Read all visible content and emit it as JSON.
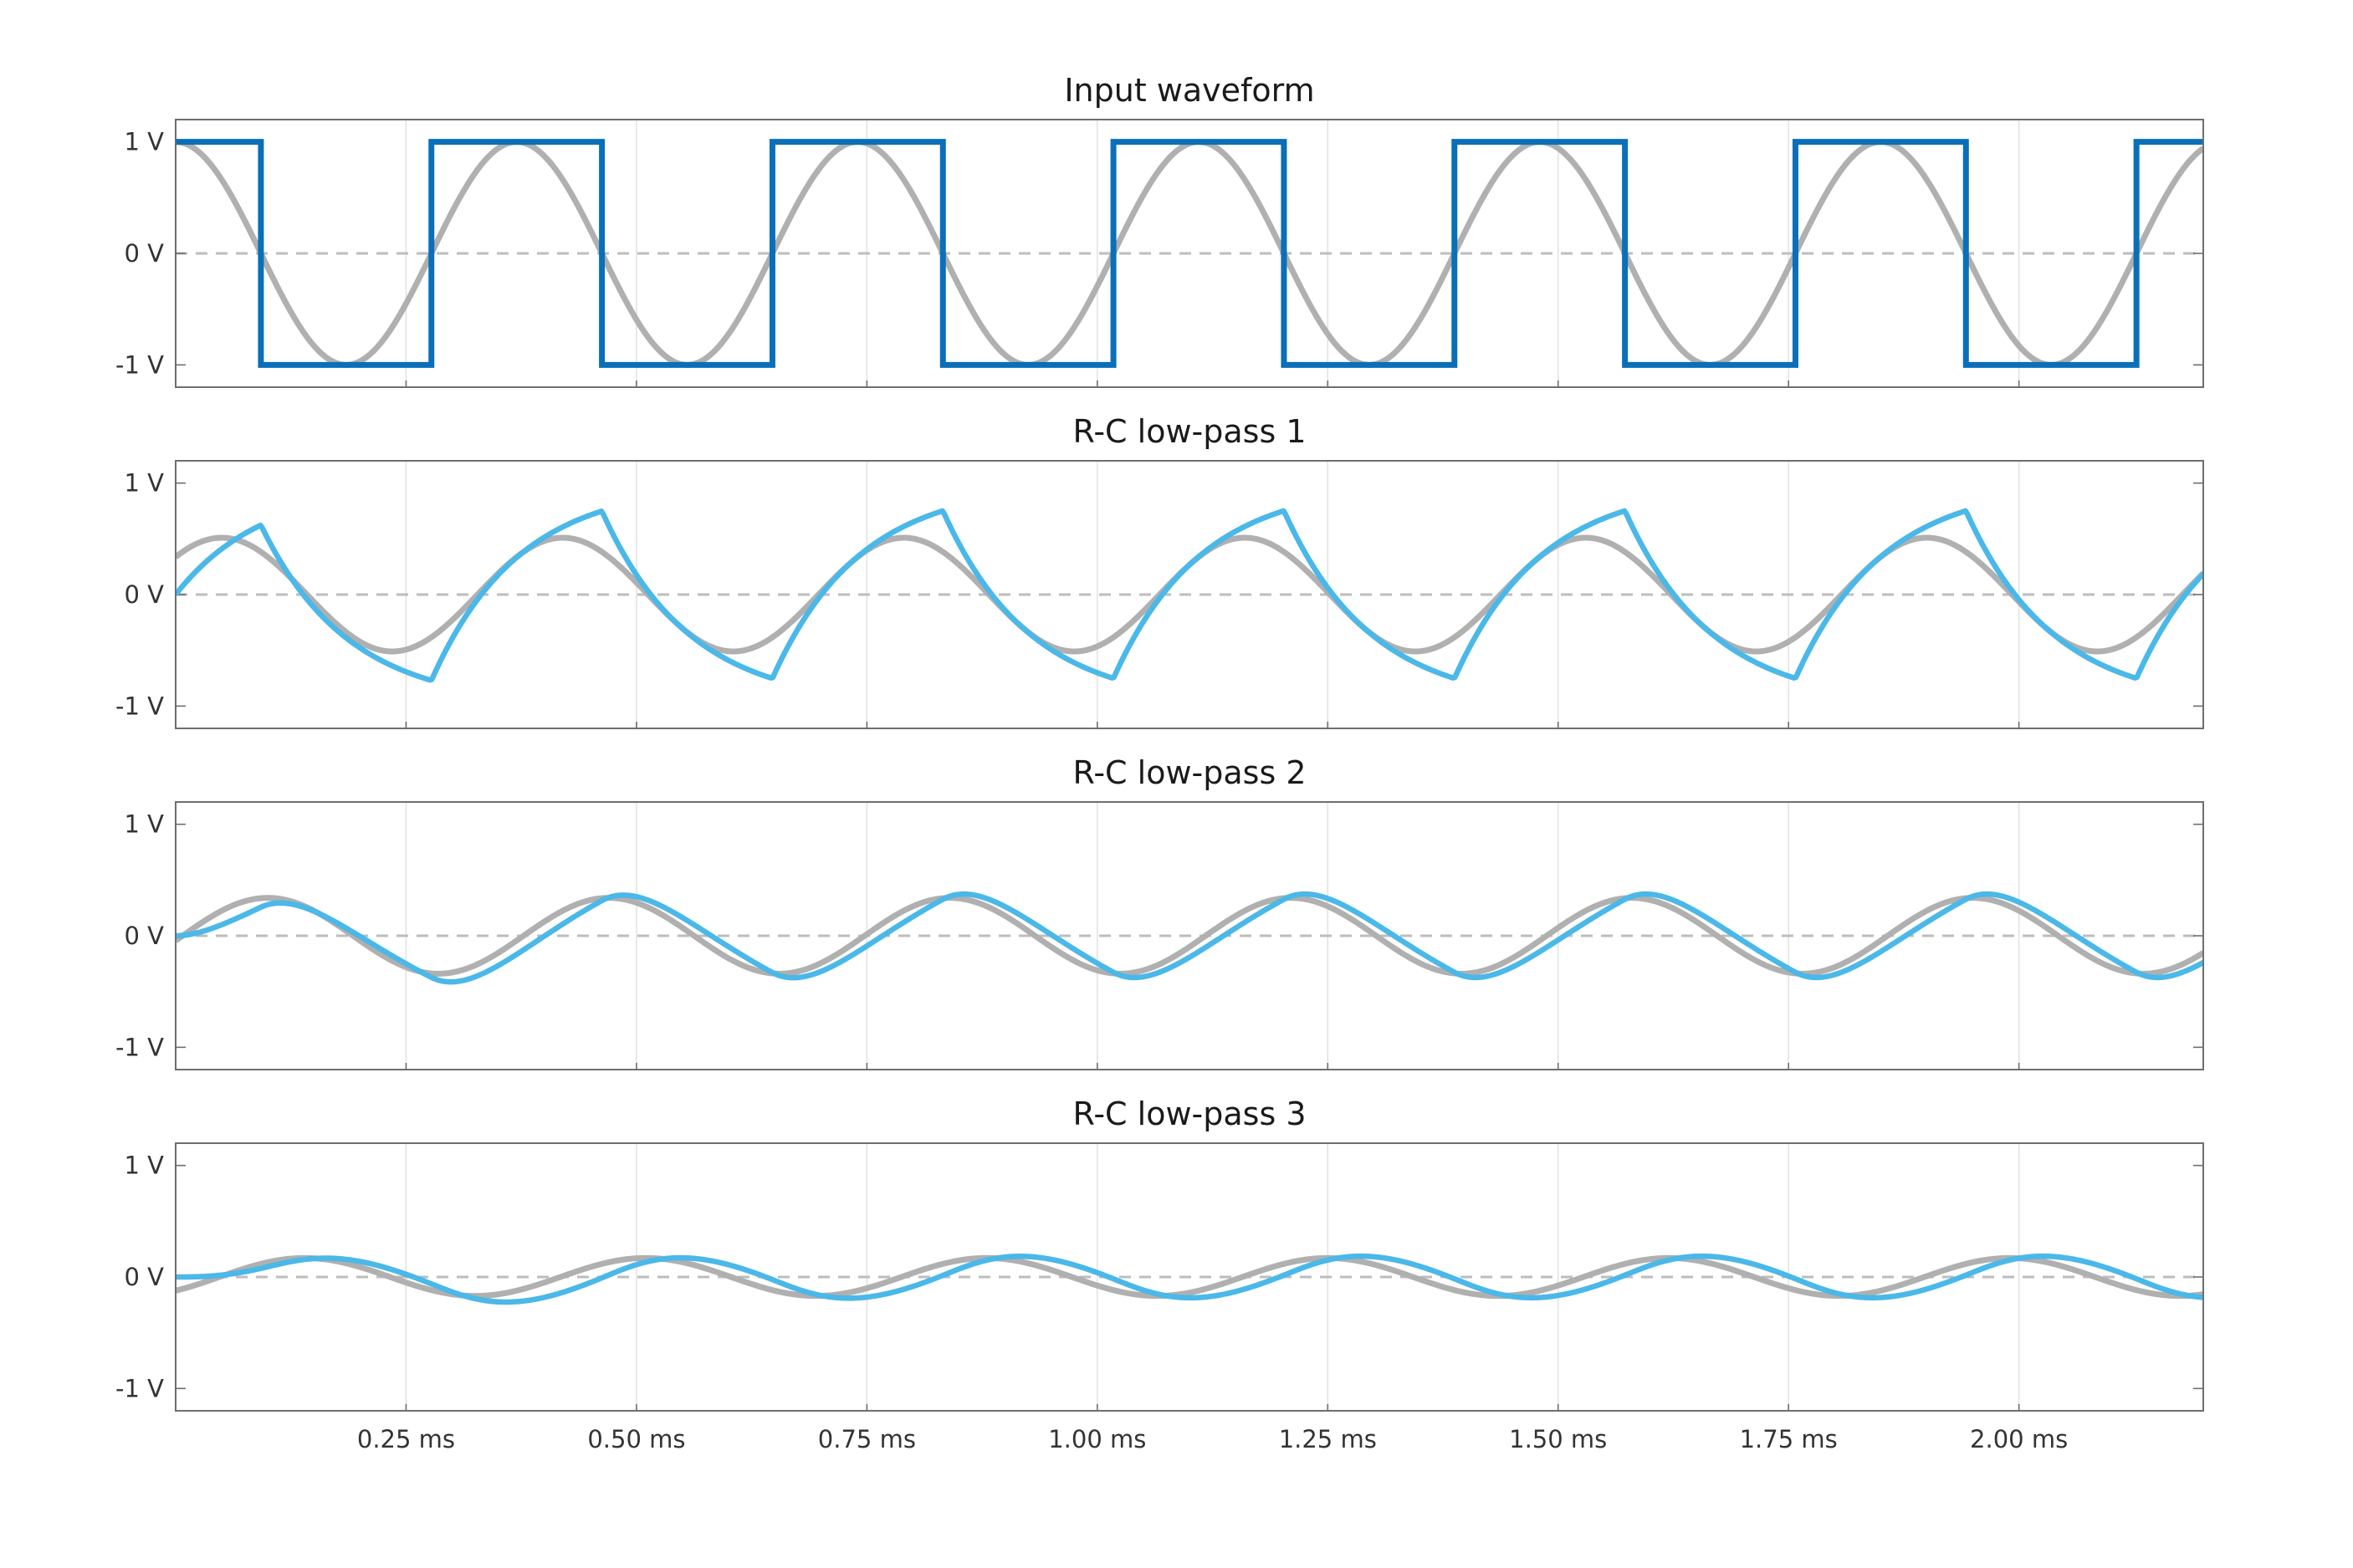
{
  "chart_data": [
    {
      "type": "line",
      "title": "Input waveform",
      "x_unit": "ms",
      "xlim": [
        0,
        2.2
      ],
      "ylim": [
        -1.2,
        1.2
      ],
      "yticks": [
        1,
        0,
        -1
      ],
      "ytick_labels": [
        "1 V",
        "0 V",
        "-1 V"
      ],
      "xticks": [
        0.25,
        0.5,
        0.75,
        1.0,
        1.25,
        1.5,
        1.75,
        2.0
      ],
      "xtick_labels": [],
      "series": [
        {
          "role": "sine",
          "color": "#b0b0b0",
          "period": 0.37,
          "amplitude": 1.0,
          "shape": "cosine"
        },
        {
          "role": "square",
          "color": "#0a6fb8",
          "period": 0.37,
          "amplitude": 1.0,
          "shape": "square"
        }
      ]
    },
    {
      "type": "line",
      "title": "R-C low-pass 1",
      "x_unit": "ms",
      "xlim": [
        0,
        2.2
      ],
      "ylim": [
        -1.2,
        1.2
      ],
      "yticks": [
        1,
        0,
        -1
      ],
      "ytick_labels": [
        "1 V",
        "0 V",
        "-1 V"
      ],
      "xticks": [
        0.25,
        0.5,
        0.75,
        1.0,
        1.25,
        1.5,
        1.75,
        2.0
      ],
      "xtick_labels": [],
      "series": [
        {
          "role": "sine",
          "color": "#b0b0b0",
          "period": 0.37,
          "amplitude": 0.51,
          "phase_lag_ms": 0.05
        },
        {
          "role": "filtered",
          "color": "#4ab8e8",
          "period": 0.37,
          "stage": 1,
          "tau_ms": 0.095
        }
      ]
    },
    {
      "type": "line",
      "title": "R-C low-pass 2",
      "x_unit": "ms",
      "xlim": [
        0,
        2.2
      ],
      "ylim": [
        -1.2,
        1.2
      ],
      "yticks": [
        1,
        0,
        -1
      ],
      "ytick_labels": [
        "1 V",
        "0 V",
        "-1 V"
      ],
      "xticks": [
        0.25,
        0.5,
        0.75,
        1.0,
        1.25,
        1.5,
        1.75,
        2.0
      ],
      "xtick_labels": [],
      "series": [
        {
          "role": "sine",
          "color": "#b0b0b0",
          "period": 0.37,
          "amplitude": 0.34,
          "phase_lag_ms": 0.1
        },
        {
          "role": "filtered",
          "color": "#4ab8e8",
          "period": 0.37,
          "stage": 2,
          "tau_ms": 0.095
        }
      ]
    },
    {
      "type": "line",
      "title": "R-C low-pass 3",
      "x_unit": "ms",
      "xlim": [
        0,
        2.2
      ],
      "ylim": [
        -1.2,
        1.2
      ],
      "yticks": [
        1,
        0,
        -1
      ],
      "ytick_labels": [
        "1 V",
        "0 V",
        "-1 V"
      ],
      "xticks": [
        0.25,
        0.5,
        0.75,
        1.0,
        1.25,
        1.5,
        1.75,
        2.0
      ],
      "xtick_labels": [
        "0.25 ms",
        "0.50 ms",
        "0.75 ms",
        "1.00 ms",
        "1.25 ms",
        "1.50 ms",
        "1.75 ms",
        "2.00 ms"
      ],
      "series": [
        {
          "role": "sine",
          "color": "#b0b0b0",
          "period": 0.37,
          "amplitude": 0.17,
          "phase_lag_ms": 0.14
        },
        {
          "role": "filtered",
          "color": "#4ab8e8",
          "period": 0.37,
          "stage": 3,
          "tau_ms": 0.095
        }
      ]
    }
  ]
}
